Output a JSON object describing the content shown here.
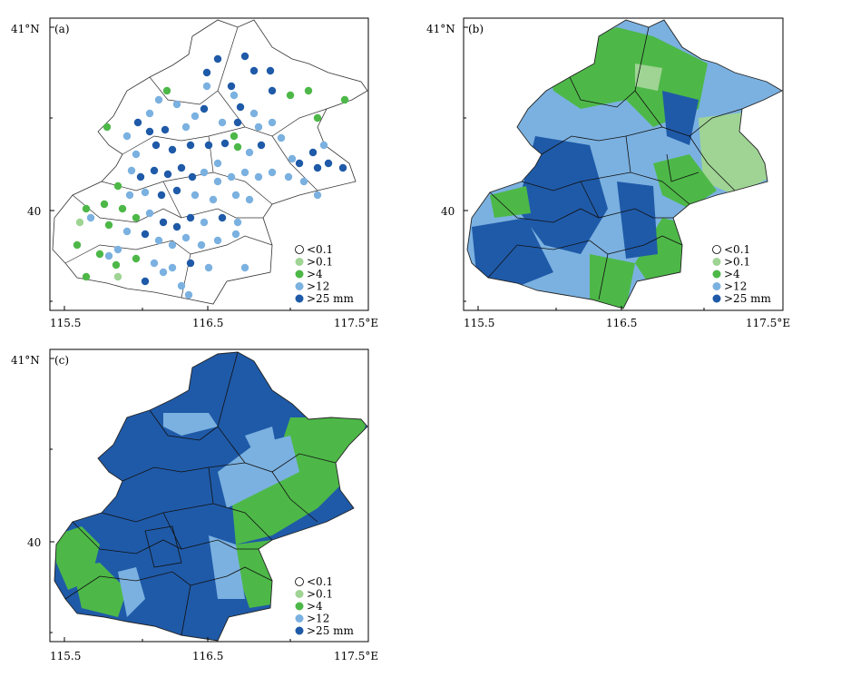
{
  "panels": [
    {
      "label": "(a)",
      "type": "stations"
    },
    {
      "label": "(b)",
      "type": "field"
    },
    {
      "label": "(c)",
      "type": "field"
    }
  ],
  "axes": {
    "y_labels": [
      "41°N",
      "40"
    ],
    "x_labels": [
      "115.5",
      "116.5",
      "117.5°E"
    ]
  },
  "legend": {
    "items": [
      {
        "label": "<0.1",
        "color": "#ffffff"
      },
      {
        "label": ">0.1",
        "color": "#9fd494"
      },
      {
        "label": ">4",
        "color": "#4db848"
      },
      {
        "label": ">12",
        "color": "#7bb1e0"
      },
      {
        "label": ">25",
        "color": "#1f5aa8"
      }
    ],
    "unit": "mm"
  },
  "colors": {
    "light_green": "#9fd494",
    "green": "#4db848",
    "light_blue": "#7bb1e0",
    "dark_blue": "#1f5aa8"
  }
}
